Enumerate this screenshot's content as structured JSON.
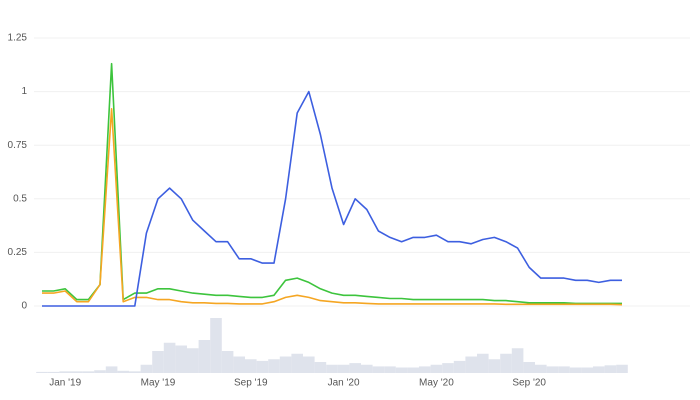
{
  "chart_data": {
    "type": "line",
    "categories": [
      null,
      null,
      "Jan '19",
      null,
      null,
      null,
      null,
      null,
      null,
      null,
      "May '19",
      null,
      null,
      null,
      null,
      null,
      null,
      null,
      "Sep '19",
      null,
      null,
      null,
      null,
      null,
      null,
      null,
      "Jan '20",
      null,
      null,
      null,
      null,
      null,
      null,
      null,
      "May '20",
      null,
      null,
      null,
      null,
      null,
      null,
      null,
      "Sep '20",
      null,
      null,
      null,
      null,
      null,
      null,
      null,
      null
    ],
    "series": [
      {
        "color": "#3dc43d",
        "values": [
          0.07,
          0.07,
          0.08,
          0.03,
          0.03,
          0.1,
          1.13,
          0.03,
          0.06,
          0.06,
          0.08,
          0.08,
          0.07,
          0.06,
          0.055,
          0.05,
          0.05,
          0.045,
          0.04,
          0.04,
          0.05,
          0.12,
          0.13,
          0.11,
          0.08,
          0.06,
          0.05,
          0.05,
          0.045,
          0.04,
          0.035,
          0.035,
          0.03,
          0.03,
          0.03,
          0.03,
          0.03,
          0.03,
          0.03,
          0.025,
          0.025,
          0.02,
          0.015,
          0.015,
          0.015,
          0.015,
          0.012,
          0.012,
          0.012,
          0.012,
          0.012
        ]
      },
      {
        "color": "#f5a623",
        "values": [
          0.06,
          0.06,
          0.07,
          0.02,
          0.02,
          0.1,
          0.92,
          0.02,
          0.04,
          0.04,
          0.03,
          0.03,
          0.02,
          0.015,
          0.015,
          0.012,
          0.012,
          0.01,
          0.01,
          0.01,
          0.02,
          0.04,
          0.05,
          0.04,
          0.025,
          0.02,
          0.015,
          0.015,
          0.012,
          0.01,
          0.01,
          0.01,
          0.01,
          0.01,
          0.01,
          0.01,
          0.01,
          0.01,
          0.01,
          0.01,
          0.008,
          0.008,
          0.008,
          0.008,
          0.008,
          0.008,
          0.008,
          0.008,
          0.008,
          0.008,
          0.006
        ]
      },
      {
        "color": "#3d5fe0",
        "values": [
          0,
          0,
          0,
          0,
          0,
          0,
          0,
          0,
          0,
          0.34,
          0.5,
          0.55,
          0.5,
          0.4,
          0.35,
          0.3,
          0.3,
          0.22,
          0.22,
          0.2,
          0.2,
          0.5,
          0.9,
          1.0,
          0.8,
          0.55,
          0.38,
          0.5,
          0.45,
          0.35,
          0.32,
          0.3,
          0.32,
          0.32,
          0.33,
          0.3,
          0.3,
          0.29,
          0.31,
          0.32,
          0.3,
          0.27,
          0.18,
          0.13,
          0.13,
          0.13,
          0.12,
          0.12,
          0.11,
          0.12,
          0.12
        ]
      }
    ],
    "volume": {
      "color": "#dfe3ec",
      "values": [
        2,
        2,
        3,
        3,
        3,
        5,
        12,
        4,
        3,
        15,
        40,
        55,
        50,
        45,
        60,
        100,
        40,
        30,
        25,
        22,
        25,
        30,
        35,
        30,
        20,
        15,
        15,
        18,
        15,
        12,
        12,
        10,
        10,
        12,
        15,
        18,
        22,
        30,
        35,
        25,
        35,
        45,
        20,
        15,
        12,
        12,
        10,
        10,
        12,
        14,
        15
      ]
    },
    "ylim": [
      0,
      1.25
    ],
    "yticks": [
      0,
      0.25,
      0.5,
      0.75,
      1,
      1.25
    ],
    "grid": true
  }
}
